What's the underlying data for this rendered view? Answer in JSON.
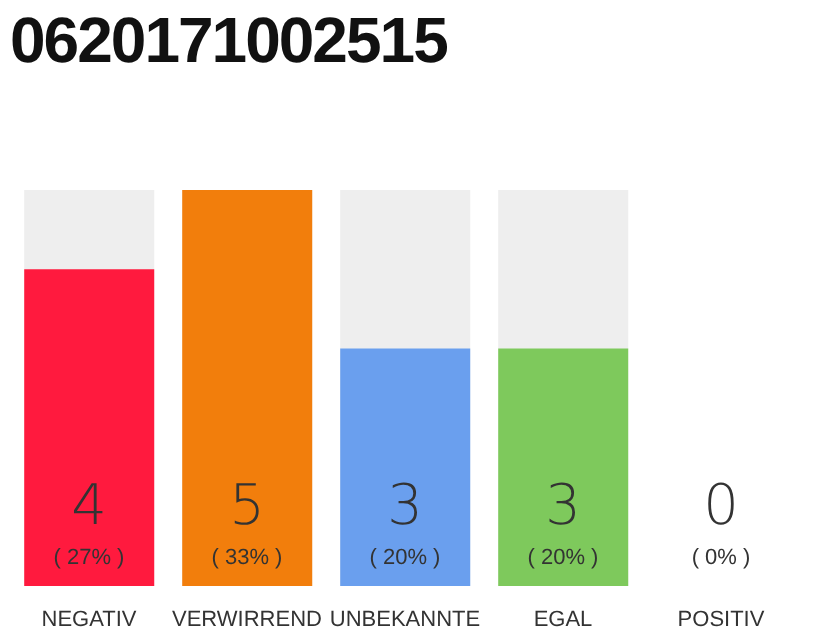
{
  "chart_data": {
    "type": "bar",
    "title": "0620171002515",
    "categories": [
      "NEGATIV",
      "VERWIRREND",
      "UNBEKANNTE",
      "EGAL",
      "POSITIV"
    ],
    "values": [
      4,
      5,
      3,
      3,
      0
    ],
    "colors": [
      "#ff1a3e",
      "#f27e0c",
      "#6a9fee",
      "#7ec95c",
      "#cccccc"
    ],
    "value_labels": [
      "4\n( 27% )",
      "5\n( 33% )",
      "3\n( 20% )",
      "3\n( 20% )",
      "0\n( 0% )"
    ],
    "grid": false,
    "legend": false
  }
}
